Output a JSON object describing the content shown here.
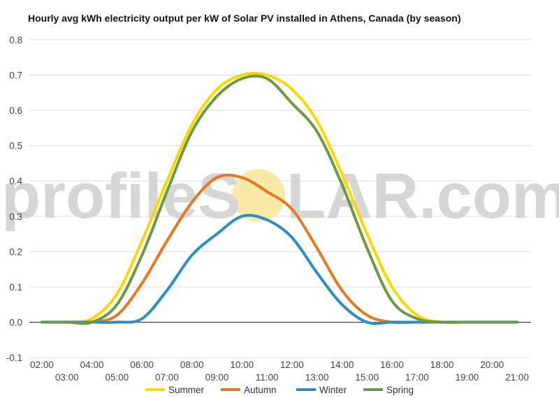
{
  "chart_data": {
    "type": "line",
    "title": "Hourly avg kWh electricity output per kW of Solar PV installed in Athens, Canada (by season)",
    "xlabel": "",
    "ylabel": "",
    "ylim": [
      -0.1,
      0.8
    ],
    "yticks": [
      "-0.1",
      "0.0",
      "0.1",
      "0.2",
      "0.3",
      "0.4",
      "0.5",
      "0.6",
      "0.7",
      "0.8"
    ],
    "x": [
      "02:00",
      "03:00",
      "04:00",
      "05:00",
      "06:00",
      "07:00",
      "08:00",
      "09:00",
      "10:00",
      "11:00",
      "12:00",
      "13:00",
      "14:00",
      "15:00",
      "16:00",
      "17:00",
      "18:00",
      "19:00",
      "20:00",
      "21:00"
    ],
    "grid": true,
    "legend": "bottom",
    "series": [
      {
        "name": "Summer",
        "color": "#ffd600",
        "values": [
          0.0,
          0.0,
          0.01,
          0.08,
          0.23,
          0.4,
          0.56,
          0.66,
          0.7,
          0.7,
          0.66,
          0.57,
          0.42,
          0.25,
          0.1,
          0.02,
          0.0,
          0.0,
          0.0,
          0.0
        ]
      },
      {
        "name": "Autumn",
        "color": "#e87722",
        "values": [
          0.0,
          0.0,
          0.0,
          0.02,
          0.11,
          0.23,
          0.34,
          0.41,
          0.41,
          0.37,
          0.32,
          0.21,
          0.09,
          0.02,
          0.0,
          0.0,
          0.0,
          0.0,
          0.0,
          0.0
        ]
      },
      {
        "name": "Winter",
        "color": "#2b8fc4",
        "values": [
          0.0,
          0.0,
          0.0,
          0.0,
          0.01,
          0.09,
          0.19,
          0.25,
          0.3,
          0.29,
          0.24,
          0.14,
          0.05,
          0.0,
          0.0,
          0.0,
          0.0,
          0.0,
          0.0,
          0.0
        ]
      },
      {
        "name": "Spring",
        "color": "#6a9a45",
        "values": [
          0.0,
          0.0,
          0.0,
          0.05,
          0.19,
          0.37,
          0.54,
          0.64,
          0.69,
          0.69,
          0.62,
          0.54,
          0.39,
          0.21,
          0.06,
          0.01,
          0.0,
          0.0,
          0.0,
          0.0
        ]
      }
    ]
  },
  "watermark": {
    "left": "profileS",
    "right": "LAR.com",
    "sun_color": "#fbe9a8"
  }
}
